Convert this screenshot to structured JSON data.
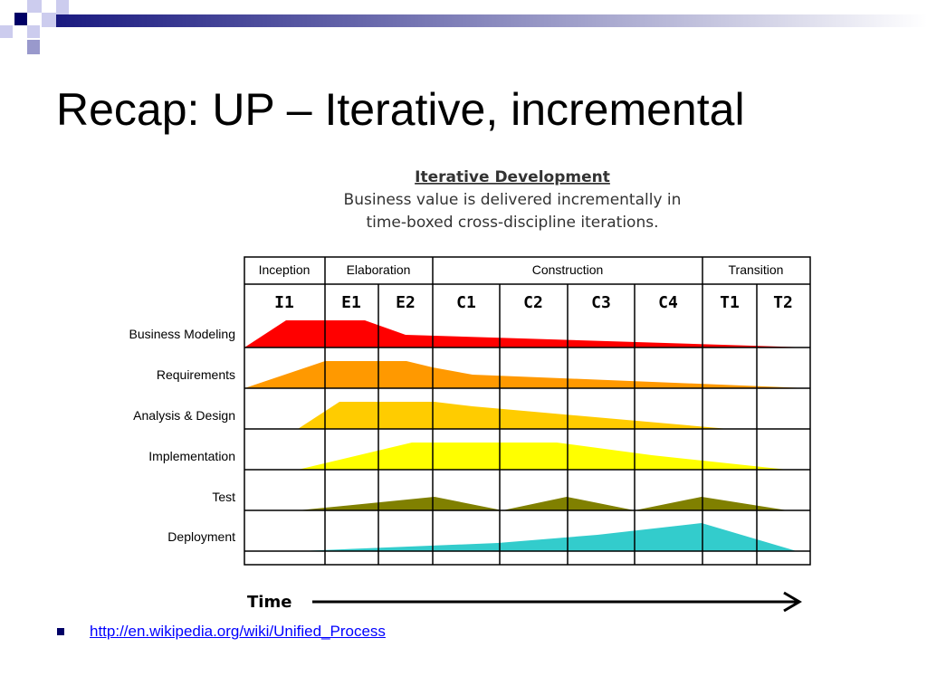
{
  "slide": {
    "title": "Recap: UP – Iterative, incremental"
  },
  "diagram": {
    "heading": "Iterative Development",
    "subtitle_lines": [
      "Business value is delivered incrementally in",
      "time-boxed cross-discipline iterations."
    ],
    "phases": [
      "Inception",
      "Elaboration",
      "Construction",
      "Transition"
    ],
    "iterations": [
      "I1",
      "E1",
      "E2",
      "C1",
      "C2",
      "C3",
      "C4",
      "T1",
      "T2"
    ],
    "disciplines": [
      {
        "name": "Business Modeling",
        "color": "#ff0000"
      },
      {
        "name": "Requirements",
        "color": "#ff9900"
      },
      {
        "name": "Analysis & Design",
        "color": "#ffcc00"
      },
      {
        "name": "Implementation",
        "color": "#ffff00"
      },
      {
        "name": "Test",
        "color": "#808000"
      },
      {
        "name": "Deployment",
        "color": "#33cccc"
      }
    ],
    "time_label": "Time"
  },
  "footer": {
    "link_text": "http://en.wikipedia.org/wiki/Unified_Process"
  },
  "colors": {
    "accent_dark": "#000066",
    "accent_light": "#9999cc",
    "link": "#0000ff"
  }
}
